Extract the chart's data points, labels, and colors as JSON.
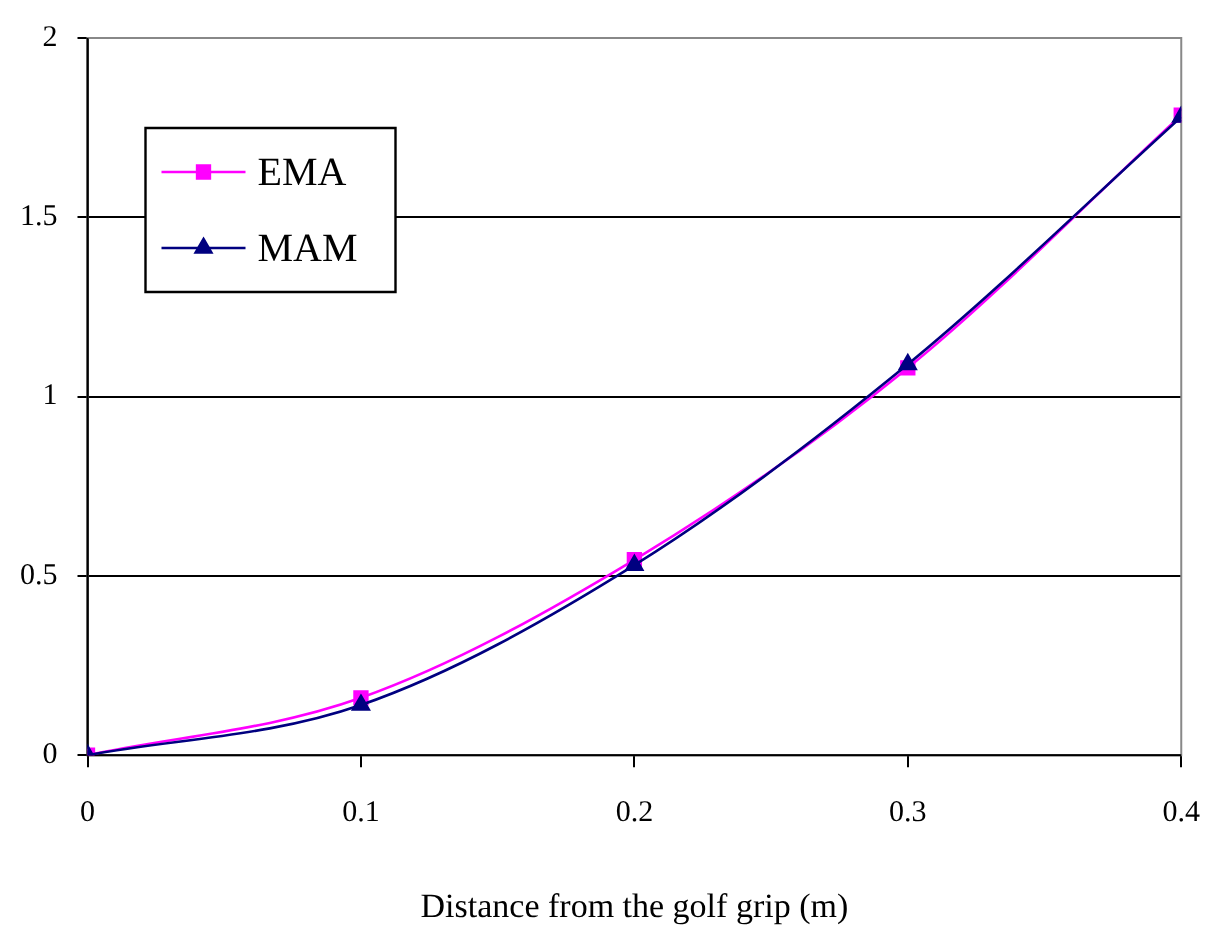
{
  "chart_data": {
    "type": "line",
    "xlabel": "Distance from the golf grip (m)",
    "x": [
      0,
      0.1,
      0.2,
      0.3,
      0.4
    ],
    "series": [
      {
        "name": "EMA",
        "color": "#ff00ff",
        "marker": "square",
        "values": [
          0,
          0.16,
          0.545,
          1.08,
          1.785
        ]
      },
      {
        "name": "MAM",
        "color": "#000080",
        "marker": "triangle",
        "values": [
          0,
          0.14,
          0.53,
          1.09,
          1.78
        ]
      }
    ],
    "xlim": [
      0,
      0.4
    ],
    "xticks": [
      0,
      0.1,
      0.2,
      0.3,
      0.4
    ],
    "ylim": [
      0,
      2
    ],
    "yticks": [
      0,
      0.5,
      1,
      1.5,
      2
    ],
    "grid": "y",
    "legend": "top left"
  }
}
